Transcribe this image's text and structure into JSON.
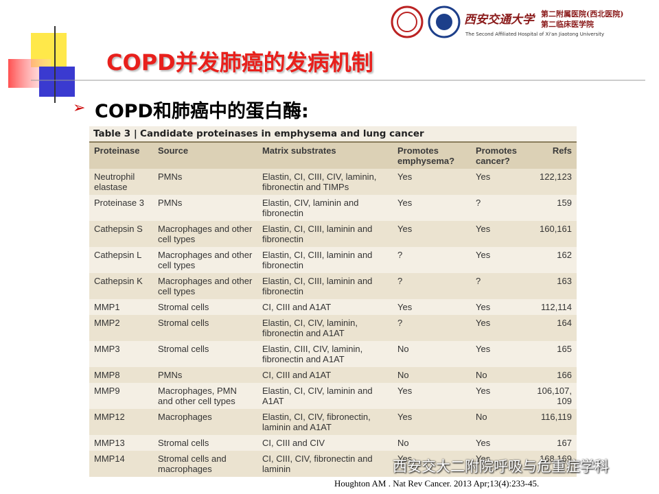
{
  "header": {
    "logo_cn_name": "西安交通大学",
    "logo_cn_hospital": "第二附属医院(西北医院)",
    "logo_cn_college": "第二临床医学院",
    "logo_en": "The Second Affiliated Hospital of Xi'an Jiaotong University"
  },
  "title": "COPD并发肺癌的发病机制",
  "bullet": "COPD和肺癌中的蛋白酶:",
  "table": {
    "caption_label": "Table 3 |",
    "caption": "Candidate proteinases in emphysema and lung cancer",
    "columns": [
      "Proteinase",
      "Source",
      "Matrix substrates",
      "Promotes emphysema?",
      "Promotes cancer?",
      "Refs"
    ],
    "rows": [
      [
        "Neutrophil elastase",
        "PMNs",
        "Elastin, CI, CIII, CIV, laminin, fibronectin and TIMPs",
        "Yes",
        "Yes",
        "122,123"
      ],
      [
        "Proteinase 3",
        "PMNs",
        "Elastin, CIV, laminin and fibronectin",
        "Yes",
        "?",
        "159"
      ],
      [
        "Cathepsin S",
        "Macrophages and other cell types",
        "Elastin, CI, CIII, laminin and fibronectin",
        "Yes",
        "Yes",
        "160,161"
      ],
      [
        "Cathepsin L",
        "Macrophages and other cell types",
        "Elastin, CI, CIII, laminin and fibronectin",
        "?",
        "Yes",
        "162"
      ],
      [
        "Cathepsin K",
        "Macrophages and other cell types",
        "Elastin, CI, CIII, laminin and fibronectin",
        "?",
        "?",
        "163"
      ],
      [
        "MMP1",
        "Stromal cells",
        "CI, CIII and A1AT",
        "Yes",
        "Yes",
        "112,114"
      ],
      [
        "MMP2",
        "Stromal cells",
        "Elastin, CI, CIV, laminin, fibronectin and A1AT",
        "?",
        "Yes",
        "164"
      ],
      [
        "MMP3",
        "Stromal cells",
        "Elastin, CIII, CIV, laminin, fibronectin and A1AT",
        "No",
        "Yes",
        "165"
      ],
      [
        "MMP8",
        "PMNs",
        "CI, CIII and A1AT",
        "No",
        "No",
        "166"
      ],
      [
        "MMP9",
        "Macrophages, PMN and other cell types",
        "Elastin, CI, CIV, laminin and A1AT",
        "Yes",
        "Yes",
        "106,107, 109"
      ],
      [
        "MMP12",
        "Macrophages",
        "Elastin, CI, CIV, fibronectin, laminin and A1AT",
        "Yes",
        "No",
        "116,119"
      ],
      [
        "MMP13",
        "Stromal cells",
        "CI, CIII and CIV",
        "No",
        "Yes",
        "167"
      ],
      [
        "MMP14",
        "Stromal cells and macrophages",
        "CI, CIII, CIV, fibronectin and laminin",
        "Yes",
        "Yes",
        "168,169"
      ]
    ]
  },
  "citation": "Houghton AM . Nat Rev Cancer. 2013 Apr;13(4):233-45.",
  "watermark": "西安交大二附院呼吸与危重症学科"
}
